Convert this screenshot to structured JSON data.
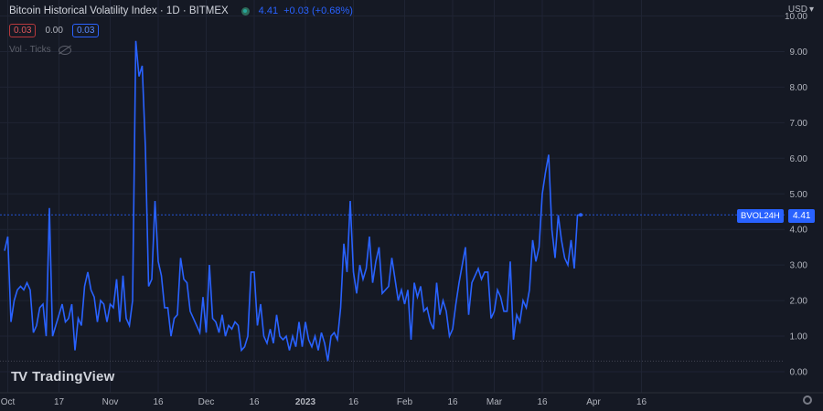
{
  "header": {
    "title": "Bitcoin Historical Volatility Index · 1D · BITMEX",
    "last": "4.41",
    "change": "+0.03 (+0.68%)"
  },
  "indicator_row": {
    "val1": "0.03",
    "val2": "0.00",
    "val3": "0.03"
  },
  "vol_label": "Vol · Ticks",
  "currency": "USD",
  "logo_text": "TradingView",
  "price_tag": {
    "name": "BVOL24H",
    "value": "4.41"
  },
  "colors": {
    "line": "#2962ff",
    "background": "#151924",
    "axis_text": "#b2b5be",
    "red_chip": "#e0585b"
  },
  "chart_data": {
    "type": "line",
    "series": [
      {
        "name": "BVOL24H",
        "values": [
          3.4,
          3.8,
          1.4,
          2.0,
          2.3,
          2.4,
          2.3,
          2.5,
          2.3,
          1.1,
          1.3,
          1.8,
          1.9,
          1.0,
          4.6,
          1.0,
          1.3,
          1.6,
          1.9,
          1.4,
          1.5,
          1.9,
          0.6,
          1.5,
          1.3,
          2.4,
          2.8,
          2.3,
          2.1,
          1.4,
          2.0,
          1.9,
          1.4,
          1.9,
          1.8,
          2.6,
          1.4,
          2.7,
          1.5,
          1.3,
          2.0,
          9.3,
          8.3,
          8.6,
          6.3,
          2.4,
          2.6,
          4.8,
          3.1,
          2.7,
          1.8,
          1.8,
          1.0,
          1.5,
          1.6,
          3.2,
          2.6,
          2.5,
          1.7,
          1.5,
          1.3,
          1.1,
          2.1,
          1.1,
          3.0,
          1.5,
          1.4,
          1.1,
          1.6,
          1.0,
          1.3,
          1.2,
          1.4,
          1.3,
          0.6,
          0.7,
          1.0,
          2.8,
          2.8,
          1.3,
          1.9,
          1.0,
          0.8,
          1.2,
          0.8,
          1.6,
          1.0,
          0.9,
          1.0,
          0.6,
          1.0,
          0.7,
          1.4,
          0.7,
          1.4,
          0.9,
          0.7,
          1.0,
          0.6,
          1.1,
          0.8,
          0.3,
          1.0,
          1.1,
          0.9,
          1.8,
          3.6,
          2.8,
          4.8,
          2.8,
          2.2,
          3.0,
          2.6,
          2.9,
          3.8,
          2.5,
          3.1,
          3.5,
          2.2,
          2.3,
          2.4,
          3.2,
          2.6,
          2.0,
          2.3,
          1.9,
          2.3,
          0.9,
          2.5,
          2.1,
          2.4,
          1.7,
          1.8,
          1.4,
          1.2,
          2.5,
          1.6,
          2.0,
          1.7,
          1.0,
          1.2,
          1.9,
          2.5,
          3.0,
          3.5,
          1.6,
          2.5,
          2.7,
          2.9,
          2.6,
          2.8,
          2.8,
          1.5,
          1.7,
          2.3,
          2.1,
          1.7,
          1.7,
          3.1,
          0.9,
          1.6,
          1.4,
          2.0,
          1.8,
          2.3,
          3.7,
          3.1,
          3.5,
          5.0,
          5.6,
          6.1,
          4.0,
          3.2,
          4.4,
          3.7,
          3.2,
          3.0,
          3.7,
          2.9,
          4.4,
          4.41
        ]
      }
    ],
    "x_ticks": [
      {
        "label": "Oct",
        "index": 1
      },
      {
        "label": "17",
        "index": 17
      },
      {
        "label": "Nov",
        "index": 33
      },
      {
        "label": "16",
        "index": 48
      },
      {
        "label": "Dec",
        "index": 63
      },
      {
        "label": "16",
        "index": 78
      },
      {
        "label": "2023",
        "index": 94
      },
      {
        "label": "16",
        "index": 109
      },
      {
        "label": "Feb",
        "index": 125
      },
      {
        "label": "16",
        "index": 140
      },
      {
        "label": "Mar",
        "index": 153
      },
      {
        "label": "16",
        "index": 168
      },
      {
        "label": "Apr",
        "index": 184
      },
      {
        "label": "16",
        "index": 199
      }
    ],
    "y_tick_labels": [
      "10.00",
      "9.00",
      "8.00",
      "7.00",
      "6.00",
      "5.00",
      "4.00",
      "3.00",
      "2.00",
      "1.00",
      "0.00"
    ],
    "ylim": [
      0,
      10
    ],
    "grid": true
  }
}
